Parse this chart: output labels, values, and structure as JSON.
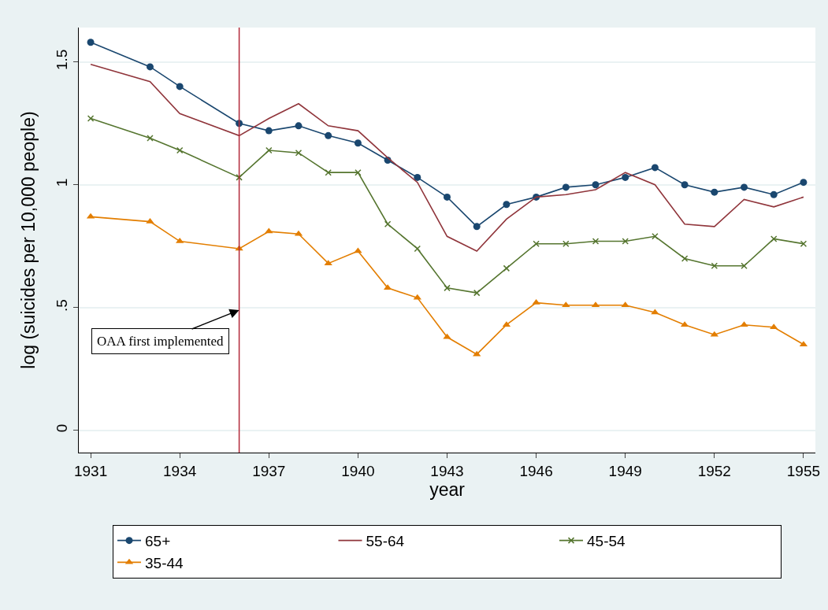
{
  "chart_data": {
    "type": "line",
    "xlabel": "year",
    "ylabel": "log (suicides per 10,000 people)",
    "x": [
      1931,
      1933,
      1934,
      1936,
      1937,
      1938,
      1939,
      1940,
      1941,
      1942,
      1943,
      1944,
      1945,
      1946,
      1947,
      1948,
      1949,
      1950,
      1951,
      1952,
      1953,
      1954,
      1955
    ],
    "series": [
      {
        "name": "65+",
        "color": "#1a476f",
        "marker": "circle",
        "values": [
          1.58,
          1.48,
          1.4,
          1.25,
          1.22,
          1.24,
          1.2,
          1.17,
          1.1,
          1.03,
          0.95,
          0.83,
          0.92,
          0.95,
          0.99,
          1.0,
          1.03,
          1.07,
          1.0,
          0.97,
          0.99,
          0.96,
          1.01
        ]
      },
      {
        "name": "55-64",
        "color": "#90353b",
        "marker": "none",
        "values": [
          1.49,
          1.42,
          1.29,
          1.2,
          1.27,
          1.33,
          1.24,
          1.22,
          1.11,
          1.01,
          0.79,
          0.73,
          0.86,
          0.95,
          0.96,
          0.98,
          1.05,
          1.0,
          0.84,
          0.83,
          0.94,
          0.91,
          0.95
        ]
      },
      {
        "name": "45-54",
        "color": "#55752f",
        "marker": "cross",
        "values": [
          1.27,
          1.19,
          1.14,
          1.03,
          1.14,
          1.13,
          1.05,
          1.05,
          0.84,
          0.74,
          0.58,
          0.56,
          0.66,
          0.76,
          0.76,
          0.77,
          0.77,
          0.79,
          0.7,
          0.67,
          0.67,
          0.78,
          0.76
        ]
      },
      {
        "name": "35-44",
        "color": "#e37e00",
        "marker": "triangle",
        "values": [
          0.87,
          0.85,
          0.77,
          0.74,
          0.81,
          0.8,
          0.68,
          0.73,
          0.58,
          0.54,
          0.38,
          0.31,
          0.43,
          0.52,
          0.51,
          0.51,
          0.51,
          0.48,
          0.43,
          0.39,
          0.43,
          0.42,
          0.35
        ]
      }
    ],
    "xlim": [
      1930.6,
      1955.4
    ],
    "xticks": [
      1931,
      1934,
      1937,
      1940,
      1943,
      1946,
      1949,
      1952,
      1955
    ],
    "ylim": [
      -0.09,
      1.64
    ],
    "yticks": [
      0,
      {
        "value": 0.5,
        "label": ".5"
      },
      1,
      1.5
    ],
    "grid": "y",
    "legend": "bottom",
    "line_style": "solid",
    "ref_lines": [
      {
        "axis": "x",
        "value": 1936,
        "label": "OAA first implemented",
        "color": "#b22a3a"
      }
    ]
  }
}
